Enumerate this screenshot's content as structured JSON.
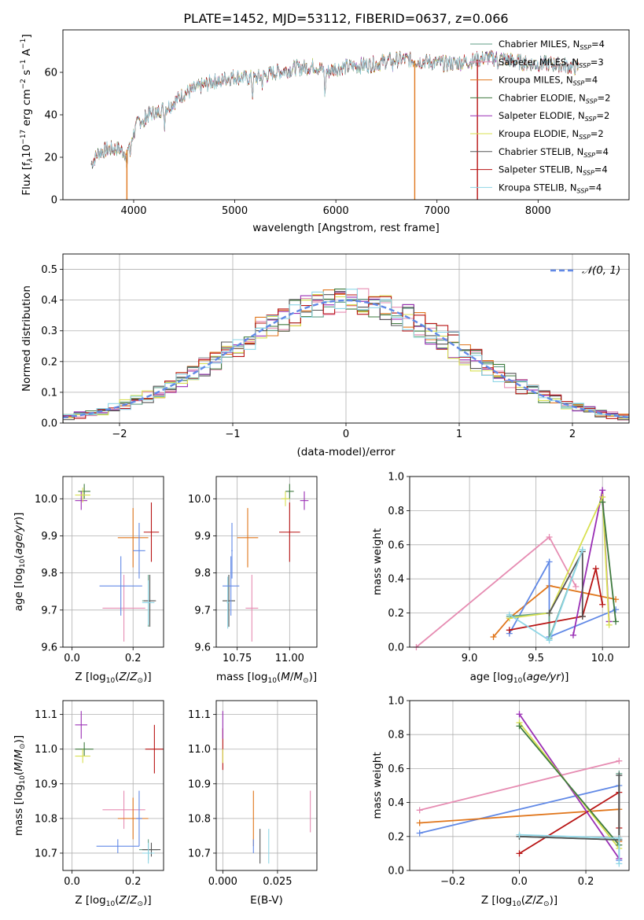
{
  "figure": {
    "title": "PLATE=1452, MJD=53112, FIBERID=0637, z=0.066"
  },
  "colors": {
    "Chabrier MILES": "#5f9e86",
    "Salpeter MILES": "#e68cb2",
    "Kroupa MILES": "#e0761c",
    "Chabrier ELODIE": "#3e7a3e",
    "Salpeter ELODIE": "#9a2fb5",
    "Kroupa ELODIE": "#d8e050",
    "Chabrier STELIB": "#555555",
    "Salpeter STELIB": "#b81414",
    "Kroupa STELIB": "#8fd6e6",
    "blue_model": "#6189e6",
    "pink_model": "#e68cb2"
  },
  "chart_data": [
    {
      "id": "spectrum",
      "type": "line",
      "xlabel": "wavelength [Angstrom, rest frame]",
      "ylabel": "Flux [f_λ10^-17 erg cm^-2 s^-1 A^-1]",
      "ylabel_parts": {
        "a": "Flux [f",
        "b": "λ",
        "c": "10",
        "d": "−17",
        "e": " erg cm",
        "f": "−2",
        "g": " s",
        "h": "−1",
        "i": " A",
        "j": "−1",
        "k": "]"
      },
      "xlim": [
        3300,
        8900
      ],
      "ylim": [
        0,
        80
      ],
      "xticks": [
        4000,
        5000,
        6000,
        7000,
        8000
      ],
      "yticks": [
        0,
        20,
        40,
        60
      ],
      "grid": false,
      "legend_position": "upper-right",
      "legend": [
        {
          "label": "Chabrier MILES",
          "nssp": "4"
        },
        {
          "label": "Salpeter MILES",
          "nssp": "3"
        },
        {
          "label": "Kroupa MILES",
          "nssp": "4"
        },
        {
          "label": "Chabrier ELODIE",
          "nssp": "2"
        },
        {
          "label": "Salpeter ELODIE",
          "nssp": "2"
        },
        {
          "label": "Kroupa ELODIE",
          "nssp": "2"
        },
        {
          "label": "Chabrier STELIB",
          "nssp": "4"
        },
        {
          "label": "Salpeter STELIB",
          "nssp": "4"
        },
        {
          "label": "Kroupa STELIB",
          "nssp": "4"
        }
      ],
      "nssp_label": "N",
      "nssp_sub": "SSP",
      "continuum": [
        [
          3580,
          17
        ],
        [
          3650,
          22
        ],
        [
          3750,
          24
        ],
        [
          3850,
          24
        ],
        [
          3920,
          22
        ],
        [
          3970,
          28
        ],
        [
          4050,
          37
        ],
        [
          4150,
          40
        ],
        [
          4250,
          42
        ],
        [
          4350,
          44
        ],
        [
          4500,
          50
        ],
        [
          4650,
          53
        ],
        [
          4800,
          56
        ],
        [
          4900,
          57
        ],
        [
          5000,
          58
        ],
        [
          5200,
          57
        ],
        [
          5400,
          60
        ],
        [
          5600,
          62
        ],
        [
          5800,
          63
        ],
        [
          5900,
          60
        ],
        [
          6000,
          62
        ],
        [
          6200,
          63
        ],
        [
          6400,
          64
        ],
        [
          6550,
          66
        ],
        [
          6700,
          66
        ],
        [
          6900,
          65
        ],
        [
          7100,
          64
        ],
        [
          7300,
          65
        ],
        [
          7500,
          67
        ],
        [
          7700,
          66
        ],
        [
          7900,
          64
        ],
        [
          8100,
          64
        ],
        [
          8300,
          63
        ],
        [
          8400,
          62
        ]
      ],
      "absorption_features": [
        [
          3933,
          12
        ],
        [
          3968,
          10
        ],
        [
          4101,
          6
        ],
        [
          4227,
          4
        ],
        [
          4305,
          8
        ],
        [
          4861,
          6
        ],
        [
          5175,
          9
        ],
        [
          5270,
          4
        ],
        [
          5893,
          14
        ],
        [
          6563,
          4
        ],
        [
          7600,
          3
        ]
      ],
      "dropouts": [
        {
          "x": 3933,
          "color": "Kroupa MILES"
        },
        {
          "x": 6780,
          "color": "Kroupa MILES"
        },
        {
          "x": 7400,
          "color": "Salpeter STELIB"
        }
      ]
    },
    {
      "id": "residuals",
      "type": "histogram",
      "xlabel": "(data-model)/error",
      "ylabel": "Normed distribution",
      "xlim": [
        -2.5,
        2.5
      ],
      "ylim": [
        0,
        0.55
      ],
      "xticks": [
        -2,
        -1,
        0,
        1,
        2
      ],
      "xtick_labels": [
        "−2",
        "−1",
        "0",
        "1",
        "2"
      ],
      "yticks": [
        0.0,
        0.1,
        0.2,
        0.3,
        0.4,
        0.5
      ],
      "ytick_labels": [
        "0.0",
        "0.1",
        "0.2",
        "0.3",
        "0.4",
        "0.5"
      ],
      "grid": true,
      "legend_position": "upper-right",
      "reference_curve": {
        "label": "𝒩(0, 1)",
        "mean": 0,
        "sigma": 1
      },
      "bin_width": 0.1,
      "series_order": [
        "Chabrier MILES",
        "Salpeter MILES",
        "Kroupa MILES",
        "Chabrier ELODIE",
        "Salpeter ELODIE",
        "Kroupa ELODIE",
        "Chabrier STELIB",
        "Salpeter STELIB",
        "Kroupa STELIB"
      ]
    },
    {
      "id": "age_vs_Z",
      "type": "scatter",
      "xlabel": "Z [log10(Z/Z⊙)]",
      "ylabel": "age [log10(age/yr)]",
      "xlim": [
        -0.03,
        0.3
      ],
      "ylim": [
        9.6,
        10.06
      ],
      "xticks": [
        0.0,
        0.2
      ],
      "xtick_labels": [
        "0.0",
        "0.2"
      ],
      "yticks": [
        9.6,
        9.7,
        9.8,
        9.9,
        10.0
      ],
      "ytick_labels": [
        "9.6",
        "9.7",
        "9.8",
        "9.9",
        "10.0"
      ],
      "grid": true,
      "points": [
        {
          "color": "Chabrier MILES",
          "x": 0.25,
          "y": 9.725,
          "xerr": 0.02,
          "yerr": 0.07
        },
        {
          "color": "Salpeter MILES",
          "x": 0.17,
          "y": 9.705,
          "xerr": 0.07,
          "yerr": 0.09
        },
        {
          "color": "Kroupa MILES",
          "x": 0.2,
          "y": 9.895,
          "xerr": 0.05,
          "yerr": 0.08
        },
        {
          "color": "Chabrier ELODIE",
          "x": 0.04,
          "y": 10.02,
          "xerr": 0.02,
          "yerr": 0.02
        },
        {
          "color": "Salpeter ELODIE",
          "x": 0.03,
          "y": 9.995,
          "xerr": 0.02,
          "yerr": 0.025
        },
        {
          "color": "Kroupa ELODIE",
          "x": 0.035,
          "y": 10.01,
          "xerr": 0.025,
          "yerr": 0.02
        },
        {
          "color": "Chabrier STELIB",
          "x": 0.255,
          "y": 9.725,
          "xerr": 0.02,
          "yerr": 0.07
        },
        {
          "color": "Salpeter STELIB",
          "x": 0.26,
          "y": 9.91,
          "xerr": 0.025,
          "yerr": 0.08
        },
        {
          "color": "Kroupa STELIB",
          "x": 0.25,
          "y": 9.72,
          "xerr": 0.02,
          "yerr": 0.06
        },
        {
          "color": "blue_model",
          "x": 0.16,
          "y": 9.765,
          "xerr": 0.07,
          "yerr": 0.08
        },
        {
          "color": "blue_model",
          "x": 0.22,
          "y": 9.86,
          "xerr": 0.02,
          "yerr": 0.075
        }
      ]
    },
    {
      "id": "age_vs_mass",
      "type": "scatter",
      "xlabel": "mass [log10(M/M⊙)]",
      "ylabel": "",
      "xlim": [
        10.65,
        11.13
      ],
      "ylim": [
        9.6,
        10.06
      ],
      "xticks": [
        10.75,
        11.0
      ],
      "xtick_labels": [
        "10.75",
        "11.00"
      ],
      "yticks": [
        9.6,
        9.7,
        9.8,
        9.9,
        10.0
      ],
      "ytick_labels": [
        "9.6",
        "9.7",
        "9.8",
        "9.9",
        "10.0"
      ],
      "grid": true,
      "points": [
        {
          "color": "Chabrier MILES",
          "x": 10.71,
          "y": 9.725,
          "xerr": 0.03,
          "yerr": 0.07
        },
        {
          "color": "Salpeter MILES",
          "x": 10.82,
          "y": 9.705,
          "xerr": 0.03,
          "yerr": 0.09
        },
        {
          "color": "Kroupa MILES",
          "x": 10.8,
          "y": 9.895,
          "xerr": 0.05,
          "yerr": 0.08
        },
        {
          "color": "Chabrier ELODIE",
          "x": 11.0,
          "y": 10.02,
          "xerr": 0.02,
          "yerr": 0.02
        },
        {
          "color": "Salpeter ELODIE",
          "x": 11.07,
          "y": 9.995,
          "xerr": 0.02,
          "yerr": 0.025
        },
        {
          "color": "Kroupa ELODIE",
          "x": 10.98,
          "y": 10.0,
          "xerr": 0.02,
          "yerr": 0.02
        },
        {
          "color": "Chabrier STELIB",
          "x": 10.71,
          "y": 9.725,
          "xerr": 0.03,
          "yerr": 0.07
        },
        {
          "color": "Salpeter STELIB",
          "x": 11.0,
          "y": 9.91,
          "xerr": 0.05,
          "yerr": 0.08
        },
        {
          "color": "Kroupa STELIB",
          "x": 10.705,
          "y": 9.72,
          "xerr": 0.005,
          "yerr": 0.07
        },
        {
          "color": "blue_model",
          "x": 10.72,
          "y": 9.765,
          "xerr": 0.04,
          "yerr": 0.08
        },
        {
          "color": "blue_model",
          "x": 10.725,
          "y": 9.86,
          "xerr": 0.003,
          "yerr": 0.075
        }
      ]
    },
    {
      "id": "weight_vs_age",
      "type": "line",
      "xlabel": "age [log10(age/yr)]",
      "ylabel": "mass weight",
      "xlim": [
        8.55,
        10.2
      ],
      "ylim": [
        0,
        1
      ],
      "xticks": [
        9.0,
        9.5,
        10.0
      ],
      "xtick_labels": [
        "9.0",
        "9.5",
        "10.0"
      ],
      "yticks": [
        0.0,
        0.2,
        0.4,
        0.6,
        0.8,
        1.0
      ],
      "ytick_labels": [
        "0.0",
        "0.2",
        "0.4",
        "0.6",
        "0.8",
        "1.0"
      ],
      "grid": true,
      "series": [
        {
          "color": "pink_model",
          "x": [
            8.6,
            9.6,
            9.8
          ],
          "y": [
            0.0,
            0.645,
            0.355
          ]
        },
        {
          "color": "Kroupa MILES",
          "x": [
            9.18,
            9.3,
            9.6,
            10.1
          ],
          "y": [
            0.06,
            0.17,
            0.36,
            0.28
          ]
        },
        {
          "color": "blue_model",
          "x": [
            9.3,
            9.6,
            9.6,
            10.1
          ],
          "y": [
            0.08,
            0.5,
            0.06,
            0.22
          ]
        },
        {
          "color": "Chabrier MILES",
          "x": [
            9.3,
            9.6,
            9.6,
            9.85
          ],
          "y": [
            0.18,
            0.2,
            0.05,
            0.57
          ]
        },
        {
          "color": "Salpeter STELIB",
          "x": [
            9.3,
            9.85,
            9.95,
            10.0
          ],
          "y": [
            0.1,
            0.18,
            0.46,
            0.25
          ]
        },
        {
          "color": "Salpeter ELODIE",
          "x": [
            9.78,
            10.0,
            10.05
          ],
          "y": [
            0.07,
            0.92,
            0.15
          ]
        },
        {
          "color": "Kroupa ELODIE",
          "x": [
            9.3,
            9.6,
            10.0,
            10.05
          ],
          "y": [
            0.17,
            0.2,
            0.88,
            0.13
          ]
        },
        {
          "color": "Chabrier ELODIE",
          "x": [
            10.0,
            10.1
          ],
          "y": [
            0.85,
            0.15
          ]
        },
        {
          "color": "Chabrier STELIB",
          "x": [
            9.6,
            9.85,
            9.85
          ],
          "y": [
            0.2,
            0.56,
            0.18
          ]
        },
        {
          "color": "Kroupa STELIB",
          "x": [
            9.3,
            9.6,
            9.85
          ],
          "y": [
            0.19,
            0.04,
            0.57
          ]
        }
      ]
    },
    {
      "id": "mass_vs_Z",
      "type": "scatter",
      "xlabel": "Z [log10(Z/Z⊙)]",
      "ylabel": "mass [log10(M/M⊙)]",
      "xlim": [
        -0.03,
        0.3
      ],
      "ylim": [
        10.65,
        11.14
      ],
      "xticks": [
        0.0,
        0.2
      ],
      "xtick_labels": [
        "0.0",
        "0.2"
      ],
      "yticks": [
        10.7,
        10.8,
        10.9,
        11.0,
        11.1
      ],
      "ytick_labels": [
        "10.7",
        "10.8",
        "10.9",
        "11.0",
        "11.1"
      ],
      "grid": true,
      "points": [
        {
          "color": "Chabrier MILES",
          "x": 0.25,
          "y": 10.71,
          "xerr": 0.03,
          "yerr": 0.03
        },
        {
          "color": "Salpeter MILES",
          "x": 0.17,
          "y": 10.825,
          "xerr": 0.07,
          "yerr": 0.055
        },
        {
          "color": "Kroupa MILES",
          "x": 0.2,
          "y": 10.8,
          "xerr": 0.05,
          "yerr": 0.06
        },
        {
          "color": "Chabrier ELODIE",
          "x": 0.04,
          "y": 11.0,
          "xerr": 0.03,
          "yerr": 0.02
        },
        {
          "color": "Salpeter ELODIE",
          "x": 0.03,
          "y": 11.07,
          "xerr": 0.02,
          "yerr": 0.04
        },
        {
          "color": "Kroupa ELODIE",
          "x": 0.035,
          "y": 10.98,
          "xerr": 0.025,
          "yerr": 0.02
        },
        {
          "color": "Chabrier STELIB",
          "x": 0.26,
          "y": 10.71,
          "xerr": 0.03,
          "yerr": 0.02
        },
        {
          "color": "Salpeter STELIB",
          "x": 0.27,
          "y": 11.0,
          "xerr": 0.03,
          "yerr": 0.07
        },
        {
          "color": "Kroupa STELIB",
          "x": 0.25,
          "y": 10.7,
          "xerr": 0.02,
          "yerr": 0.03
        },
        {
          "color": "blue_model",
          "x": 0.15,
          "y": 10.72,
          "xerr": 0.07,
          "yerr": 0.02
        },
        {
          "color": "blue_model",
          "x": 0.22,
          "y": 10.8,
          "xerr": 0.01,
          "yerr": 0.08
        }
      ]
    },
    {
      "id": "mass_vs_ebv",
      "type": "scatter",
      "xlabel": "E(B-V)",
      "ylabel": "",
      "xlim": [
        -0.003,
        0.043
      ],
      "ylim": [
        10.65,
        11.14
      ],
      "xticks": [
        0.0,
        0.025
      ],
      "xtick_labels": [
        "0.000",
        "0.025"
      ],
      "yticks": [
        10.7,
        10.8,
        10.9,
        11.0,
        11.1
      ],
      "ytick_labels": [
        "10.7",
        "10.8",
        "10.9",
        "11.0",
        "11.1"
      ],
      "grid": true,
      "points": [
        {
          "color": "Salpeter STELIB",
          "x": 0.0,
          "y": 11.0,
          "xerr": 0.0,
          "yerr": 0.06
        },
        {
          "color": "Salpeter ELODIE",
          "x": 0.0,
          "y": 11.07,
          "xerr": 0.0,
          "yerr": 0.04
        },
        {
          "color": "Kroupa ELODIE",
          "x": 0.0,
          "y": 10.98,
          "xerr": 0.0,
          "yerr": 0.02
        },
        {
          "color": "Kroupa MILES",
          "x": 0.014,
          "y": 10.8,
          "xerr": 0.0,
          "yerr": 0.08
        },
        {
          "color": "blue_model",
          "x": 0.014,
          "y": 10.72,
          "xerr": 0.0,
          "yerr": 0.02
        },
        {
          "color": "Chabrier STELIB",
          "x": 0.017,
          "y": 10.72,
          "xerr": 0.0,
          "yerr": 0.05
        },
        {
          "color": "Kroupa STELIB",
          "x": 0.021,
          "y": 10.72,
          "xerr": 0.0,
          "yerr": 0.05
        },
        {
          "color": "Salpeter MILES",
          "x": 0.04,
          "y": 10.82,
          "xerr": 0.0,
          "yerr": 0.06
        }
      ]
    },
    {
      "id": "weight_vs_Z",
      "type": "line",
      "xlabel": "Z [log10(Z/Z⊙)]",
      "ylabel": "mass weight",
      "xlim": [
        -0.33,
        0.33
      ],
      "ylim": [
        0,
        1
      ],
      "xticks": [
        -0.2,
        0.0,
        0.2
      ],
      "xtick_labels": [
        "−0.2",
        "0.0",
        "0.2"
      ],
      "yticks": [
        0.0,
        0.2,
        0.4,
        0.6,
        0.8,
        1.0
      ],
      "ytick_labels": [
        "0.0",
        "0.2",
        "0.4",
        "0.6",
        "0.8",
        "1.0"
      ],
      "grid": true,
      "series": [
        {
          "color": "pink_model",
          "x": [
            -0.3,
            0.3
          ],
          "y": [
            0.355,
            0.645
          ]
        },
        {
          "color": "blue_model",
          "x": [
            -0.3,
            0.3,
            0.3
          ],
          "y": [
            0.22,
            0.5,
            0.06
          ]
        },
        {
          "color": "Kroupa MILES",
          "x": [
            -0.3,
            0.3,
            0.3
          ],
          "y": [
            0.28,
            0.36,
            0.17
          ]
        },
        {
          "color": "Salpeter STELIB",
          "x": [
            0.0,
            0.3,
            0.3
          ],
          "y": [
            0.1,
            0.46,
            0.25
          ]
        },
        {
          "color": "Salpeter ELODIE",
          "x": [
            0.0,
            0.3
          ],
          "y": [
            0.92,
            0.07
          ]
        },
        {
          "color": "Kroupa ELODIE",
          "x": [
            0.0,
            0.3
          ],
          "y": [
            0.87,
            0.13
          ]
        },
        {
          "color": "Chabrier ELODIE",
          "x": [
            0.0,
            0.3
          ],
          "y": [
            0.85,
            0.15
          ]
        },
        {
          "color": "Chabrier MILES",
          "x": [
            0.0,
            0.3,
            0.3
          ],
          "y": [
            0.2,
            0.18,
            0.57
          ]
        },
        {
          "color": "Chabrier STELIB",
          "x": [
            0.0,
            0.3,
            0.3
          ],
          "y": [
            0.2,
            0.18,
            0.56
          ]
        },
        {
          "color": "Kroupa STELIB",
          "x": [
            0.0,
            0.3,
            0.3
          ],
          "y": [
            0.21,
            0.19,
            0.04
          ]
        }
      ]
    }
  ]
}
